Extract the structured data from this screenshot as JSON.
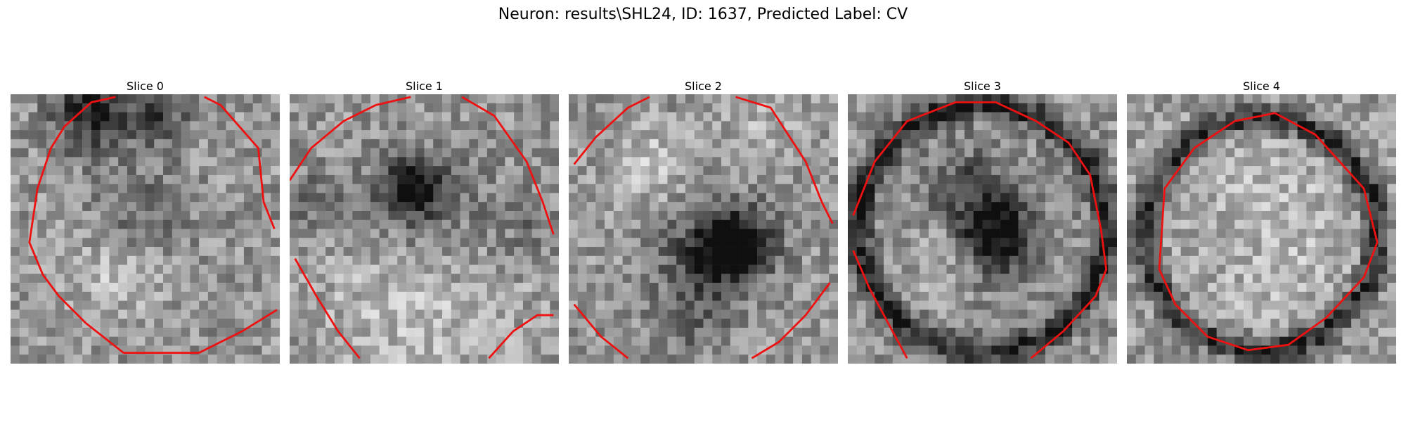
{
  "figure": {
    "title": "Neuron: results\\SHL24, ID: 1637, Predicted Label: CV",
    "panels": [
      {
        "label": "Slice 0",
        "seed": 11,
        "blobs": [
          [
            0.3,
            0.07,
            0.1,
            -120
          ],
          [
            0.55,
            0.08,
            0.08,
            -80
          ],
          [
            0.5,
            0.45,
            0.12,
            -50
          ],
          [
            0.4,
            0.65,
            0.12,
            40
          ]
        ],
        "contour": [
          [
            0.39,
            0.01
          ],
          [
            0.3,
            0.03
          ],
          [
            0.2,
            0.12
          ],
          [
            0.15,
            0.2
          ],
          [
            0.1,
            0.35
          ],
          [
            0.07,
            0.55
          ],
          [
            0.12,
            0.67
          ],
          [
            0.18,
            0.75
          ],
          [
            0.28,
            0.85
          ],
          [
            0.42,
            0.96
          ],
          [
            0.7,
            0.96
          ],
          [
            0.86,
            0.88
          ],
          [
            0.99,
            0.8
          ]
        ],
        "contour2": [
          [
            0.72,
            0.01
          ],
          [
            0.78,
            0.04
          ],
          [
            0.92,
            0.2
          ],
          [
            0.94,
            0.4
          ],
          [
            0.98,
            0.5
          ]
        ]
      },
      {
        "label": "Slice 1",
        "seed": 23,
        "blobs": [
          [
            0.45,
            0.35,
            0.08,
            -140
          ],
          [
            0.55,
            0.5,
            0.2,
            -60
          ],
          [
            0.5,
            0.7,
            0.25,
            60
          ],
          [
            0.1,
            0.4,
            0.1,
            -40
          ],
          [
            0.9,
            0.5,
            0.08,
            -30
          ]
        ],
        "contour": [
          [
            0.0,
            0.32
          ],
          [
            0.08,
            0.2
          ],
          [
            0.2,
            0.1
          ],
          [
            0.32,
            0.04
          ],
          [
            0.45,
            0.01
          ]
        ],
        "contour2": [
          [
            0.64,
            0.01
          ],
          [
            0.76,
            0.08
          ],
          [
            0.88,
            0.25
          ],
          [
            0.94,
            0.4
          ],
          [
            0.98,
            0.52
          ]
        ],
        "contour3": [
          [
            0.02,
            0.61
          ],
          [
            0.1,
            0.75
          ],
          [
            0.18,
            0.88
          ],
          [
            0.26,
            0.98
          ]
        ],
        "contour4": [
          [
            0.74,
            0.98
          ],
          [
            0.83,
            0.88
          ],
          [
            0.92,
            0.82
          ],
          [
            0.98,
            0.82
          ]
        ]
      },
      {
        "label": "Slice 2",
        "seed": 37,
        "blobs": [
          [
            0.62,
            0.55,
            0.1,
            -150
          ],
          [
            0.5,
            0.62,
            0.12,
            -70
          ],
          [
            0.45,
            0.85,
            0.1,
            -40
          ],
          [
            0.3,
            0.25,
            0.1,
            40
          ],
          [
            0.7,
            0.15,
            0.1,
            30
          ]
        ],
        "contour": [
          [
            0.02,
            0.26
          ],
          [
            0.1,
            0.16
          ],
          [
            0.22,
            0.05
          ],
          [
            0.3,
            0.01
          ]
        ],
        "contour2": [
          [
            0.62,
            0.01
          ],
          [
            0.75,
            0.05
          ],
          [
            0.88,
            0.25
          ],
          [
            0.94,
            0.4
          ],
          [
            0.98,
            0.48
          ]
        ],
        "contour3": [
          [
            0.02,
            0.78
          ],
          [
            0.12,
            0.9
          ],
          [
            0.22,
            0.98
          ]
        ],
        "contour4": [
          [
            0.68,
            0.98
          ],
          [
            0.78,
            0.92
          ],
          [
            0.88,
            0.82
          ],
          [
            0.97,
            0.7
          ]
        ]
      },
      {
        "label": "Slice 3",
        "seed": 51,
        "blobs": [
          [
            0.55,
            0.52,
            0.1,
            -140
          ],
          [
            0.45,
            0.35,
            0.1,
            -60
          ],
          [
            0.5,
            0.5,
            0.42,
            -10
          ],
          [
            0.35,
            0.6,
            0.1,
            40
          ]
        ],
        "ring": [
          0.5,
          0.5,
          0.46,
          -110
        ],
        "contour": [
          [
            0.02,
            0.45
          ],
          [
            0.1,
            0.25
          ],
          [
            0.22,
            0.1
          ],
          [
            0.4,
            0.03
          ],
          [
            0.55,
            0.03
          ],
          [
            0.7,
            0.1
          ],
          [
            0.82,
            0.18
          ],
          [
            0.9,
            0.3
          ],
          [
            0.94,
            0.5
          ],
          [
            0.96,
            0.65
          ],
          [
            0.92,
            0.75
          ],
          [
            0.8,
            0.88
          ],
          [
            0.68,
            0.98
          ]
        ],
        "contour3": [
          [
            0.02,
            0.58
          ],
          [
            0.08,
            0.72
          ],
          [
            0.15,
            0.85
          ],
          [
            0.22,
            0.98
          ]
        ]
      },
      {
        "label": "Slice 4",
        "seed": 67,
        "blobs": [
          [
            0.5,
            0.5,
            0.3,
            40
          ],
          [
            0.35,
            0.55,
            0.1,
            -20
          ]
        ],
        "ring": [
          0.5,
          0.52,
          0.43,
          -120
        ],
        "contour": [
          [
            0.4,
            0.1
          ],
          [
            0.55,
            0.07
          ],
          [
            0.7,
            0.15
          ],
          [
            0.88,
            0.35
          ],
          [
            0.93,
            0.55
          ],
          [
            0.88,
            0.68
          ],
          [
            0.74,
            0.83
          ],
          [
            0.6,
            0.93
          ],
          [
            0.45,
            0.95
          ],
          [
            0.3,
            0.9
          ],
          [
            0.18,
            0.78
          ],
          [
            0.12,
            0.65
          ],
          [
            0.14,
            0.35
          ],
          [
            0.25,
            0.2
          ],
          [
            0.4,
            0.1
          ]
        ]
      }
    ]
  },
  "colors": {
    "contour": "#ee1111",
    "background": "#ffffff"
  }
}
